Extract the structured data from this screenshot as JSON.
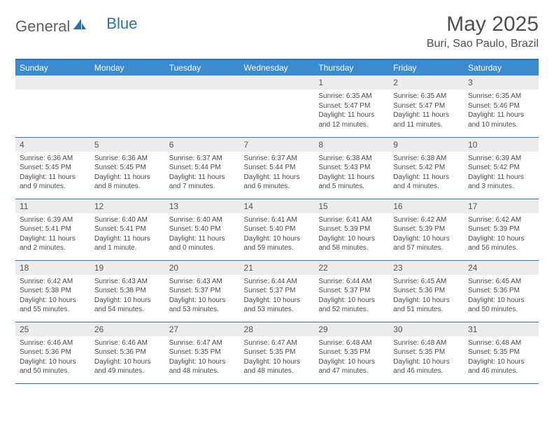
{
  "brand": {
    "name": "General",
    "accent_word": "Blue"
  },
  "colors": {
    "header_bg": "#3b8bd0",
    "rule": "#2a72b5",
    "daynum_bg": "#ececec",
    "text": "#4a4a4a",
    "logo_gray": "#606060",
    "logo_blue": "#2a72b5"
  },
  "typography": {
    "title_fontsize": 30,
    "location_fontsize": 16,
    "dayheader_fontsize": 12,
    "body_fontsize": 10
  },
  "title": "May 2025",
  "location": "Buri, Sao Paulo, Brazil",
  "day_headers": [
    "Sunday",
    "Monday",
    "Tuesday",
    "Wednesday",
    "Thursday",
    "Friday",
    "Saturday"
  ],
  "weeks": [
    [
      null,
      null,
      null,
      null,
      {
        "n": "1",
        "sunrise": "6:35 AM",
        "sunset": "5:47 PM",
        "daylight": "11 hours and 12 minutes."
      },
      {
        "n": "2",
        "sunrise": "6:35 AM",
        "sunset": "5:47 PM",
        "daylight": "11 hours and 11 minutes."
      },
      {
        "n": "3",
        "sunrise": "6:35 AM",
        "sunset": "5:46 PM",
        "daylight": "11 hours and 10 minutes."
      }
    ],
    [
      {
        "n": "4",
        "sunrise": "6:36 AM",
        "sunset": "5:45 PM",
        "daylight": "11 hours and 9 minutes."
      },
      {
        "n": "5",
        "sunrise": "6:36 AM",
        "sunset": "5:45 PM",
        "daylight": "11 hours and 8 minutes."
      },
      {
        "n": "6",
        "sunrise": "6:37 AM",
        "sunset": "5:44 PM",
        "daylight": "11 hours and 7 minutes."
      },
      {
        "n": "7",
        "sunrise": "6:37 AM",
        "sunset": "5:44 PM",
        "daylight": "11 hours and 6 minutes."
      },
      {
        "n": "8",
        "sunrise": "6:38 AM",
        "sunset": "5:43 PM",
        "daylight": "11 hours and 5 minutes."
      },
      {
        "n": "9",
        "sunrise": "6:38 AM",
        "sunset": "5:42 PM",
        "daylight": "11 hours and 4 minutes."
      },
      {
        "n": "10",
        "sunrise": "6:39 AM",
        "sunset": "5:42 PM",
        "daylight": "11 hours and 3 minutes."
      }
    ],
    [
      {
        "n": "11",
        "sunrise": "6:39 AM",
        "sunset": "5:41 PM",
        "daylight": "11 hours and 2 minutes."
      },
      {
        "n": "12",
        "sunrise": "6:40 AM",
        "sunset": "5:41 PM",
        "daylight": "11 hours and 1 minute."
      },
      {
        "n": "13",
        "sunrise": "6:40 AM",
        "sunset": "5:40 PM",
        "daylight": "11 hours and 0 minutes."
      },
      {
        "n": "14",
        "sunrise": "6:41 AM",
        "sunset": "5:40 PM",
        "daylight": "10 hours and 59 minutes."
      },
      {
        "n": "15",
        "sunrise": "6:41 AM",
        "sunset": "5:39 PM",
        "daylight": "10 hours and 58 minutes."
      },
      {
        "n": "16",
        "sunrise": "6:42 AM",
        "sunset": "5:39 PM",
        "daylight": "10 hours and 57 minutes."
      },
      {
        "n": "17",
        "sunrise": "6:42 AM",
        "sunset": "5:39 PM",
        "daylight": "10 hours and 56 minutes."
      }
    ],
    [
      {
        "n": "18",
        "sunrise": "6:42 AM",
        "sunset": "5:38 PM",
        "daylight": "10 hours and 55 minutes."
      },
      {
        "n": "19",
        "sunrise": "6:43 AM",
        "sunset": "5:38 PM",
        "daylight": "10 hours and 54 minutes."
      },
      {
        "n": "20",
        "sunrise": "6:43 AM",
        "sunset": "5:37 PM",
        "daylight": "10 hours and 53 minutes."
      },
      {
        "n": "21",
        "sunrise": "6:44 AM",
        "sunset": "5:37 PM",
        "daylight": "10 hours and 53 minutes."
      },
      {
        "n": "22",
        "sunrise": "6:44 AM",
        "sunset": "5:37 PM",
        "daylight": "10 hours and 52 minutes."
      },
      {
        "n": "23",
        "sunrise": "6:45 AM",
        "sunset": "5:36 PM",
        "daylight": "10 hours and 51 minutes."
      },
      {
        "n": "24",
        "sunrise": "6:45 AM",
        "sunset": "5:36 PM",
        "daylight": "10 hours and 50 minutes."
      }
    ],
    [
      {
        "n": "25",
        "sunrise": "6:46 AM",
        "sunset": "5:36 PM",
        "daylight": "10 hours and 50 minutes."
      },
      {
        "n": "26",
        "sunrise": "6:46 AM",
        "sunset": "5:36 PM",
        "daylight": "10 hours and 49 minutes."
      },
      {
        "n": "27",
        "sunrise": "6:47 AM",
        "sunset": "5:35 PM",
        "daylight": "10 hours and 48 minutes."
      },
      {
        "n": "28",
        "sunrise": "6:47 AM",
        "sunset": "5:35 PM",
        "daylight": "10 hours and 48 minutes."
      },
      {
        "n": "29",
        "sunrise": "6:48 AM",
        "sunset": "5:35 PM",
        "daylight": "10 hours and 47 minutes."
      },
      {
        "n": "30",
        "sunrise": "6:48 AM",
        "sunset": "5:35 PM",
        "daylight": "10 hours and 46 minutes."
      },
      {
        "n": "31",
        "sunrise": "6:48 AM",
        "sunset": "5:35 PM",
        "daylight": "10 hours and 46 minutes."
      }
    ]
  ],
  "labels": {
    "sunrise": "Sunrise:",
    "sunset": "Sunset:",
    "daylight": "Daylight:"
  }
}
